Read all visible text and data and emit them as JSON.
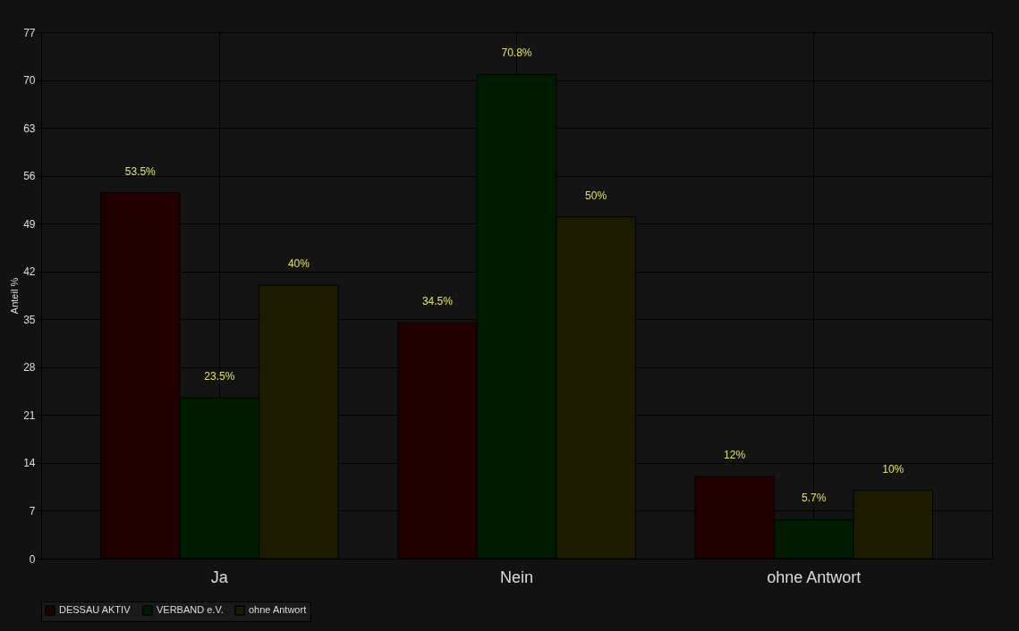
{
  "chart_data": {
    "type": "bar",
    "categories": [
      "Ja",
      "Nein",
      "ohne Antwort"
    ],
    "ylabel": "Anteil %",
    "ylim": [
      0,
      77
    ],
    "yticks": [
      0,
      7,
      14,
      21,
      28,
      35,
      42,
      49,
      56,
      63,
      70,
      77
    ],
    "grid": true,
    "legend": "bottom",
    "series": [
      {
        "name": "DESSAU AKTIV",
        "color": "#220000",
        "values": [
          53.5,
          34.5,
          12
        ],
        "value_labels": [
          "53.5%",
          "34.5%",
          "12%"
        ]
      },
      {
        "name": "VERBAND e.V.",
        "color": "#001c00",
        "values": [
          23.5,
          70.8,
          5.7
        ],
        "value_labels": [
          "23.5%",
          "70.8%",
          "5.7%"
        ]
      },
      {
        "name": "ohne Antwort",
        "color": "#1c1b00",
        "values": [
          40,
          50,
          10
        ],
        "value_labels": [
          "40%",
          "50%",
          "10%"
        ]
      }
    ]
  }
}
